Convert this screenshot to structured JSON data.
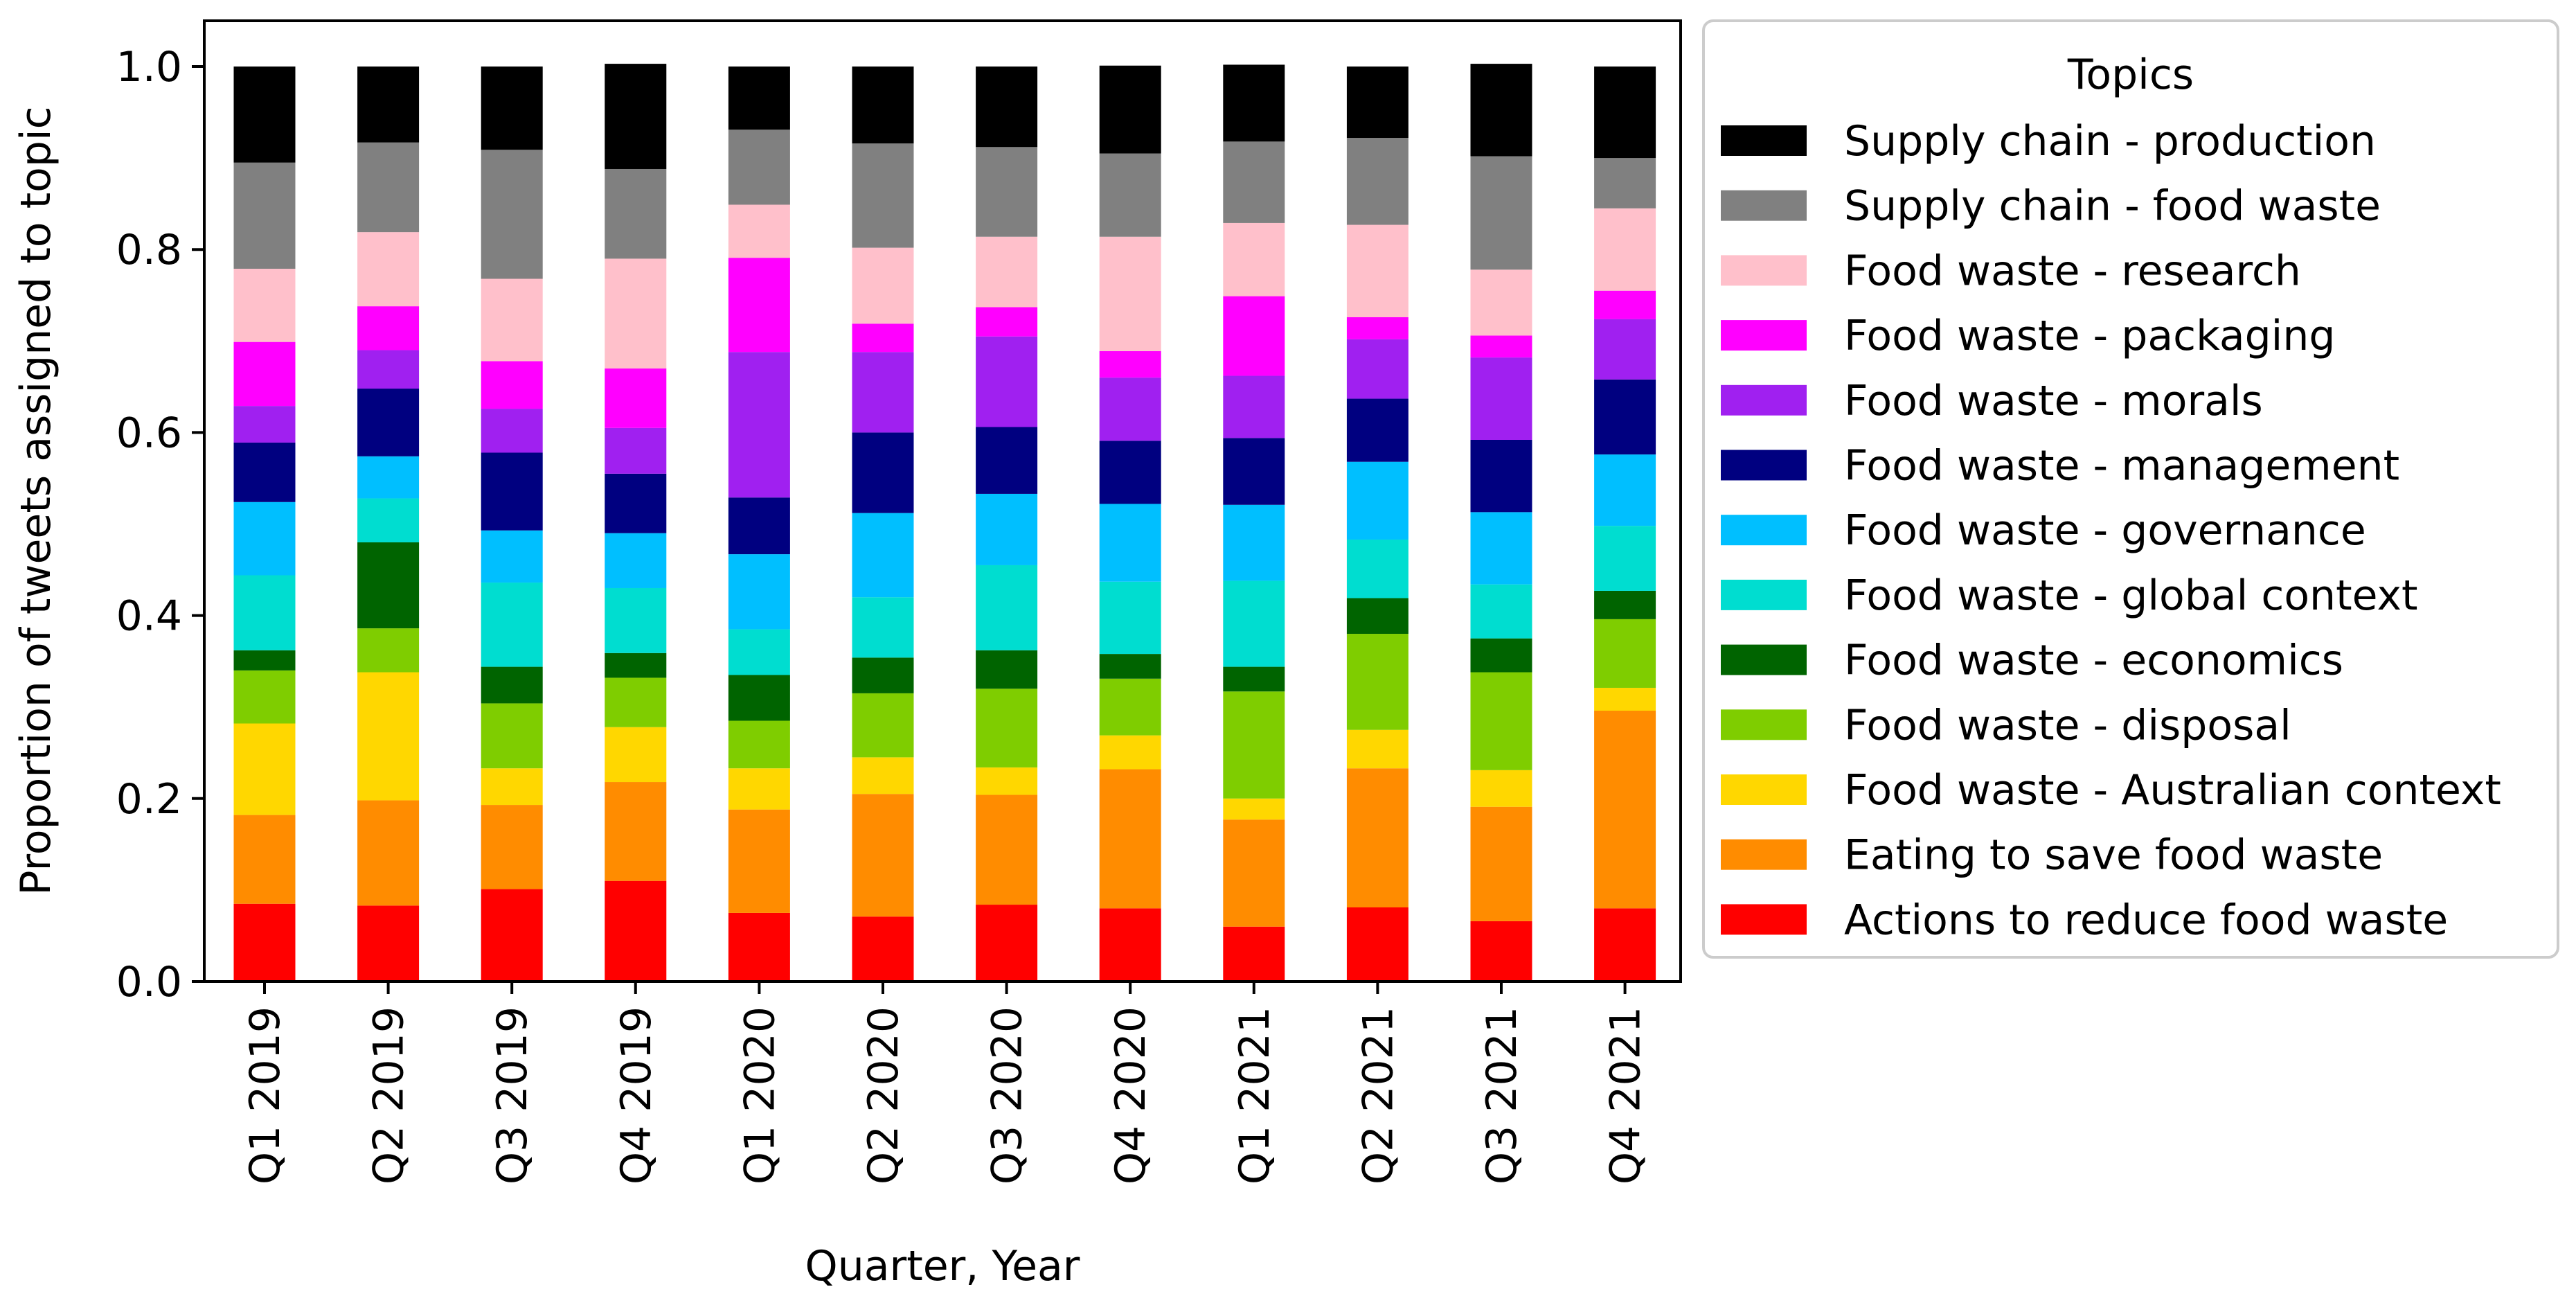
{
  "chart_data": {
    "type": "bar",
    "stacked": true,
    "xlabel": "Quarter, Year",
    "ylabel": "Proportion of tweets assigned to topic",
    "ylim": [
      0,
      1.05
    ],
    "yticks": [
      "0.0",
      "0.2",
      "0.4",
      "0.6",
      "0.8",
      "1.0"
    ],
    "grid": false,
    "legend_position": "right",
    "legend_title": "Topics",
    "categories": [
      "Q1 2019",
      "Q2 2019",
      "Q3 2019",
      "Q4 2019",
      "Q1 2020",
      "Q2 2020",
      "Q3 2020",
      "Q4 2020",
      "Q1 2021",
      "Q2 2021",
      "Q3 2021",
      "Q4 2021"
    ],
    "series": [
      {
        "name": "Actions to reduce food waste",
        "color": "#ff0000",
        "values": [
          0.085,
          0.083,
          0.101,
          0.11,
          0.075,
          0.071,
          0.084,
          0.08,
          0.06,
          0.081,
          0.066,
          0.08
        ]
      },
      {
        "name": "Eating to save food waste",
        "color": "#ff8c00",
        "values": [
          0.097,
          0.115,
          0.092,
          0.108,
          0.113,
          0.134,
          0.12,
          0.152,
          0.117,
          0.152,
          0.125,
          0.216
        ]
      },
      {
        "name": "Food waste - Australian context",
        "color": "#ffd700",
        "values": [
          0.1,
          0.14,
          0.04,
          0.06,
          0.045,
          0.04,
          0.03,
          0.037,
          0.023,
          0.042,
          0.04,
          0.025
        ]
      },
      {
        "name": "Food waste - disposal",
        "color": "#7fcd00",
        "values": [
          0.058,
          0.048,
          0.071,
          0.054,
          0.052,
          0.07,
          0.086,
          0.062,
          0.117,
          0.105,
          0.107,
          0.075
        ]
      },
      {
        "name": "Food waste - economics",
        "color": "#006400",
        "values": [
          0.022,
          0.094,
          0.04,
          0.027,
          0.05,
          0.039,
          0.042,
          0.027,
          0.027,
          0.039,
          0.037,
          0.031
        ]
      },
      {
        "name": "Food waste - global context",
        "color": "#00ddd0",
        "values": [
          0.082,
          0.048,
          0.092,
          0.071,
          0.05,
          0.066,
          0.093,
          0.079,
          0.094,
          0.064,
          0.059,
          0.071
        ]
      },
      {
        "name": "Food waste - governance",
        "color": "#00bfff",
        "values": [
          0.08,
          0.046,
          0.057,
          0.06,
          0.082,
          0.092,
          0.078,
          0.085,
          0.083,
          0.085,
          0.079,
          0.078
        ]
      },
      {
        "name": "Food waste - management",
        "color": "#000080",
        "values": [
          0.065,
          0.074,
          0.085,
          0.065,
          0.062,
          0.088,
          0.073,
          0.069,
          0.073,
          0.069,
          0.079,
          0.082
        ]
      },
      {
        "name": "Food waste - morals",
        "color": "#a020f0",
        "values": [
          0.04,
          0.042,
          0.048,
          0.05,
          0.159,
          0.088,
          0.099,
          0.069,
          0.068,
          0.065,
          0.09,
          0.066
        ]
      },
      {
        "name": "Food waste - packaging",
        "color": "#ff00ff",
        "values": [
          0.07,
          0.048,
          0.052,
          0.065,
          0.103,
          0.031,
          0.032,
          0.029,
          0.087,
          0.024,
          0.024,
          0.031
        ]
      },
      {
        "name": "Food waste - research",
        "color": "#ffc0cb",
        "values": [
          0.08,
          0.081,
          0.09,
          0.12,
          0.058,
          0.083,
          0.077,
          0.125,
          0.08,
          0.101,
          0.072,
          0.09
        ]
      },
      {
        "name": "Supply chain - food waste",
        "color": "#808080",
        "values": [
          0.116,
          0.098,
          0.141,
          0.098,
          0.082,
          0.114,
          0.098,
          0.091,
          0.089,
          0.095,
          0.124,
          0.055
        ]
      },
      {
        "name": "Supply chain - production",
        "color": "#000000",
        "values": [
          0.105,
          0.083,
          0.091,
          0.115,
          0.069,
          0.084,
          0.088,
          0.096,
          0.084,
          0.078,
          0.101,
          0.1
        ]
      }
    ]
  }
}
